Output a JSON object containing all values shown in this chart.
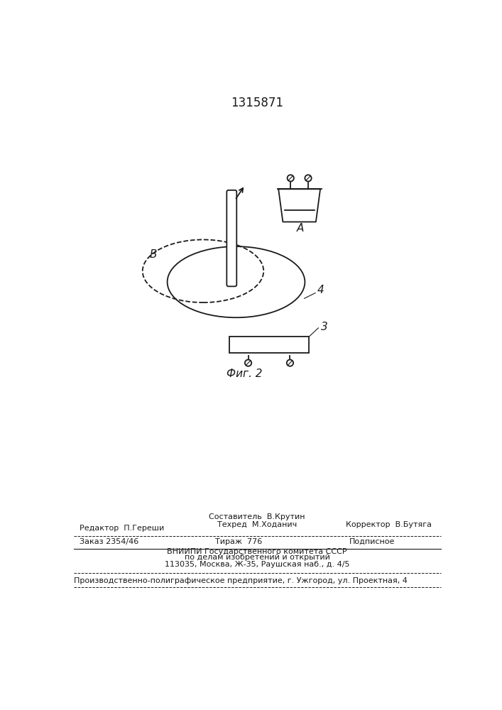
{
  "patent_number": "1315871",
  "bg_color": "#ffffff",
  "line_color": "#1a1a1a",
  "fig_label": "Фиг. 2",
  "label_A": "A",
  "label_B": "B",
  "label_3": "3",
  "label_4": "4"
}
